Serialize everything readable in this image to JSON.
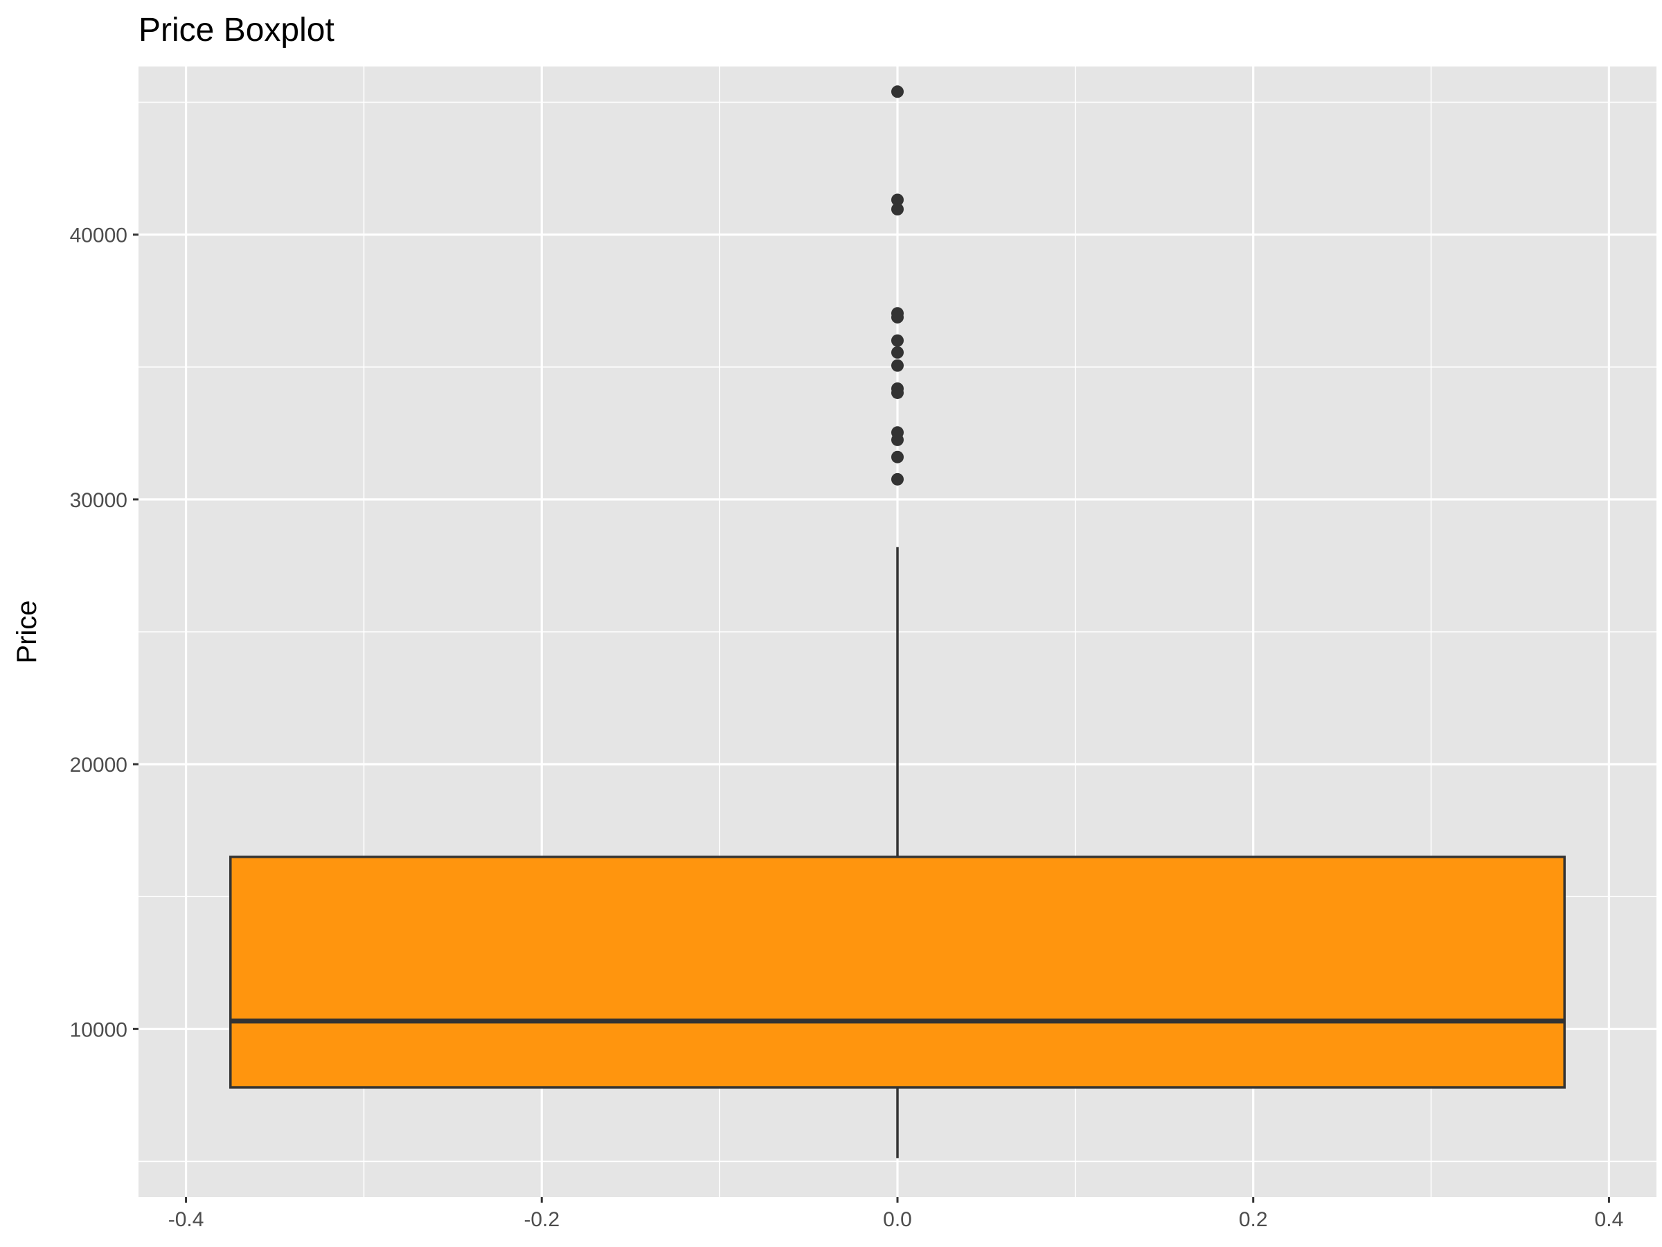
{
  "chart_data": {
    "type": "boxplot",
    "title": "Price Boxplot",
    "xlabel": "",
    "ylabel": "Price",
    "xlim": [
      -0.4267,
      0.4267
    ],
    "ylim": [
      3650,
      46350
    ],
    "x_ticks": [
      {
        "value": -0.4,
        "label": "-0.4"
      },
      {
        "value": -0.2,
        "label": "-0.2"
      },
      {
        "value": 0.0,
        "label": "0.0"
      },
      {
        "value": 0.2,
        "label": "0.2"
      },
      {
        "value": 0.4,
        "label": "0.4"
      }
    ],
    "x_minor_ticks": [
      -0.3,
      -0.1,
      0.1,
      0.3
    ],
    "y_ticks": [
      {
        "value": 10000,
        "label": "10000"
      },
      {
        "value": 20000,
        "label": "20000"
      },
      {
        "value": 30000,
        "label": "30000"
      },
      {
        "value": 40000,
        "label": "40000"
      }
    ],
    "y_minor_ticks": [
      5000,
      15000,
      25000,
      35000,
      45000
    ],
    "grid": true,
    "box": {
      "x_center": 0,
      "x_min": -0.375,
      "x_max": 0.375,
      "q1": 7790,
      "median": 10300,
      "q3": 16500,
      "whisker_low": 5120,
      "whisker_high": 28200,
      "fill": "#FF950E",
      "stroke": "#333333"
    },
    "outliers": [
      45400,
      41315,
      40960,
      37028,
      36880,
      36000,
      35550,
      35056,
      34184,
      34028,
      32528,
      32250,
      31600,
      30760
    ],
    "colors": {
      "panel": "#E5E5E5",
      "grid": "#FFFFFF",
      "point": "#333333"
    }
  }
}
